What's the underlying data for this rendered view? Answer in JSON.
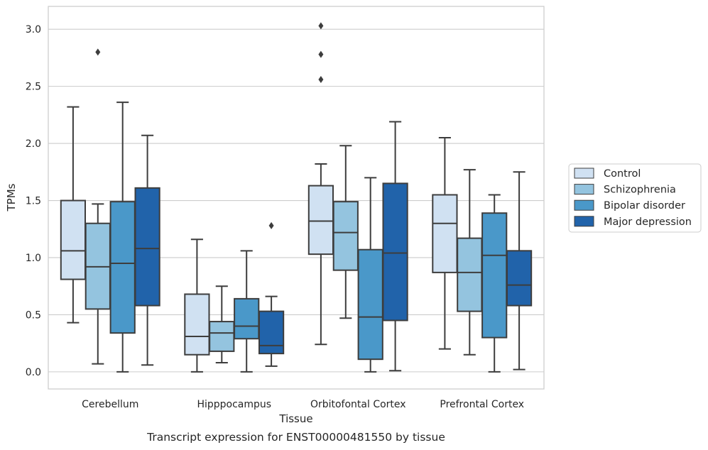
{
  "caption": "Transcript expression for ENST00000481550 by tissue",
  "chart_data": {
    "type": "box",
    "title": "",
    "xlabel": "Tissue",
    "ylabel": "TPMs",
    "ylim": [
      -0.15,
      3.2
    ],
    "yticks": [
      0.0,
      0.5,
      1.0,
      1.5,
      2.0,
      2.5,
      3.0
    ],
    "ytick_labels": [
      "0.0",
      "0.5",
      "1.0",
      "1.5",
      "2.0",
      "2.5",
      "3.0"
    ],
    "categories": [
      "Cerebellum",
      "Hipppocampus",
      "Orbitofontal Cortex",
      "Prefrontal Cortex"
    ],
    "grid": "horizontal",
    "legend_position": "right",
    "series": [
      {
        "name": "Control",
        "color": "#d0e1f2",
        "boxes": [
          {
            "whislo": 0.43,
            "q1": 0.81,
            "med": 1.06,
            "q3": 1.5,
            "whishi": 2.32,
            "fliers": []
          },
          {
            "whislo": 0.0,
            "q1": 0.15,
            "med": 0.31,
            "q3": 0.68,
            "whishi": 1.16,
            "fliers": []
          },
          {
            "whislo": 0.24,
            "q1": 1.03,
            "med": 1.32,
            "q3": 1.63,
            "whishi": 1.82,
            "fliers": [
              2.56,
              2.78,
              3.03
            ]
          },
          {
            "whislo": 0.2,
            "q1": 0.87,
            "med": 1.3,
            "q3": 1.55,
            "whishi": 2.05,
            "fliers": []
          }
        ]
      },
      {
        "name": "Schizophrenia",
        "color": "#94c4df",
        "boxes": [
          {
            "whislo": 0.07,
            "q1": 0.55,
            "med": 0.92,
            "q3": 1.3,
            "whishi": 1.47,
            "fliers": [
              2.8
            ]
          },
          {
            "whislo": 0.08,
            "q1": 0.18,
            "med": 0.34,
            "q3": 0.44,
            "whishi": 0.75,
            "fliers": []
          },
          {
            "whislo": 0.47,
            "q1": 0.89,
            "med": 1.22,
            "q3": 1.49,
            "whishi": 1.98,
            "fliers": []
          },
          {
            "whislo": 0.15,
            "q1": 0.53,
            "med": 0.87,
            "q3": 1.17,
            "whishi": 1.77,
            "fliers": []
          }
        ]
      },
      {
        "name": "Bipolar disorder",
        "color": "#4a98c9",
        "boxes": [
          {
            "whislo": 0.0,
            "q1": 0.34,
            "med": 0.95,
            "q3": 1.49,
            "whishi": 2.36,
            "fliers": []
          },
          {
            "whislo": 0.0,
            "q1": 0.29,
            "med": 0.4,
            "q3": 0.64,
            "whishi": 1.06,
            "fliers": []
          },
          {
            "whislo": 0.0,
            "q1": 0.11,
            "med": 0.48,
            "q3": 1.07,
            "whishi": 1.7,
            "fliers": []
          },
          {
            "whislo": 0.0,
            "q1": 0.3,
            "med": 1.02,
            "q3": 1.39,
            "whishi": 1.55,
            "fliers": []
          }
        ]
      },
      {
        "name": "Major depression",
        "color": "#2163aa",
        "boxes": [
          {
            "whislo": 0.06,
            "q1": 0.58,
            "med": 1.08,
            "q3": 1.61,
            "whishi": 2.07,
            "fliers": []
          },
          {
            "whislo": 0.05,
            "q1": 0.16,
            "med": 0.23,
            "q3": 0.53,
            "whishi": 0.66,
            "fliers": [
              1.28
            ]
          },
          {
            "whislo": 0.01,
            "q1": 0.45,
            "med": 1.04,
            "q3": 1.65,
            "whishi": 2.19,
            "fliers": []
          },
          {
            "whislo": 0.02,
            "q1": 0.58,
            "med": 0.76,
            "q3": 1.06,
            "whishi": 1.75,
            "fliers": []
          }
        ]
      }
    ]
  }
}
